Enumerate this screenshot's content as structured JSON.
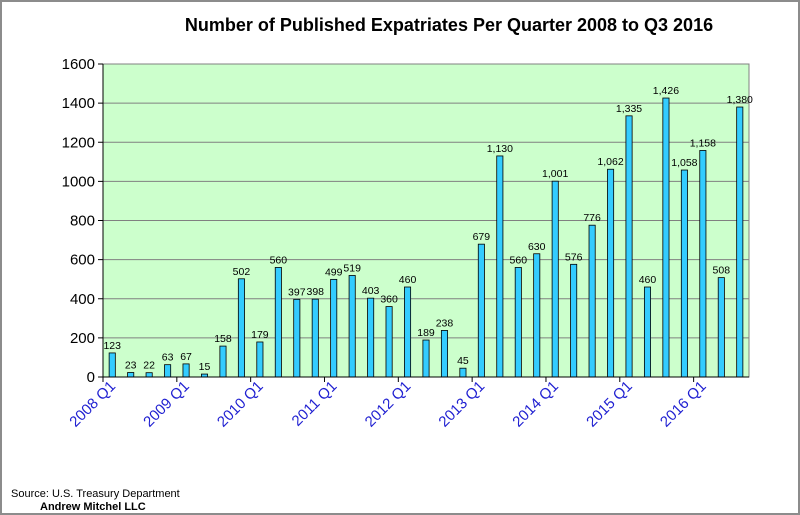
{
  "chart_data": {
    "type": "bar",
    "title": "Number of Published Expatriates Per Quarter 2008  to Q3 2016",
    "xlabel": "",
    "ylabel": "",
    "ylim": [
      0,
      1600
    ],
    "yticks": [
      0,
      200,
      400,
      600,
      800,
      1000,
      1200,
      1400,
      1600
    ],
    "grid": "horizontal",
    "xtick_labels": [
      "2008 Q1",
      "2009 Q1",
      "2010 Q1",
      "2011 Q1",
      "2012 Q1",
      "2013 Q1",
      "2014 Q1",
      "2015 Q1",
      "2016 Q1"
    ],
    "xtick_category_index": [
      0,
      4,
      8,
      12,
      16,
      20,
      24,
      28,
      32
    ],
    "categories": [
      "2008 Q1",
      "2008 Q2",
      "2008 Q3",
      "2008 Q4",
      "2009 Q1",
      "2009 Q2",
      "2009 Q3",
      "2009 Q4",
      "2010 Q1",
      "2010 Q2",
      "2010 Q3",
      "2010 Q4",
      "2011 Q1",
      "2011 Q2",
      "2011 Q3",
      "2011 Q4",
      "2012 Q1",
      "2012 Q2",
      "2012 Q3",
      "2012 Q4",
      "2013 Q1",
      "2013 Q2",
      "2013 Q3",
      "2013 Q4",
      "2014 Q1",
      "2014 Q2",
      "2014 Q3",
      "2014 Q4",
      "2015 Q1",
      "2015 Q2",
      "2015 Q3",
      "2015 Q4",
      "2016 Q1",
      "2016 Q2",
      "2016 Q3"
    ],
    "values": [
      123,
      23,
      22,
      63,
      67,
      15,
      158,
      502,
      179,
      560,
      397,
      398,
      499,
      519,
      403,
      360,
      460,
      189,
      238,
      45,
      679,
      1130,
      560,
      630,
      1001,
      576,
      776,
      1062,
      1335,
      460,
      1426,
      1058,
      1158,
      508,
      1380
    ],
    "value_labels": [
      "123",
      "23",
      "22",
      "63",
      "67",
      "15",
      "158",
      "502",
      "179",
      "560",
      "397",
      "398",
      "499",
      "519",
      "403",
      "360",
      "460",
      "189",
      "238",
      "45",
      "679",
      "1,130",
      "560",
      "630",
      "1,001",
      "576",
      "776",
      "1,062",
      "1,335",
      "460",
      "1,426",
      "1,058",
      "1,158",
      "508",
      "1,380"
    ]
  },
  "footer": {
    "source": "Source:  U.S. Treasury Department",
    "author": "Andrew Mitchel LLC"
  },
  "colors": {
    "plot_background": "#ccffcc",
    "bar_fill": "#33ccff",
    "bar_stroke": "#000000",
    "tick_label": "#1f1fd1"
  }
}
